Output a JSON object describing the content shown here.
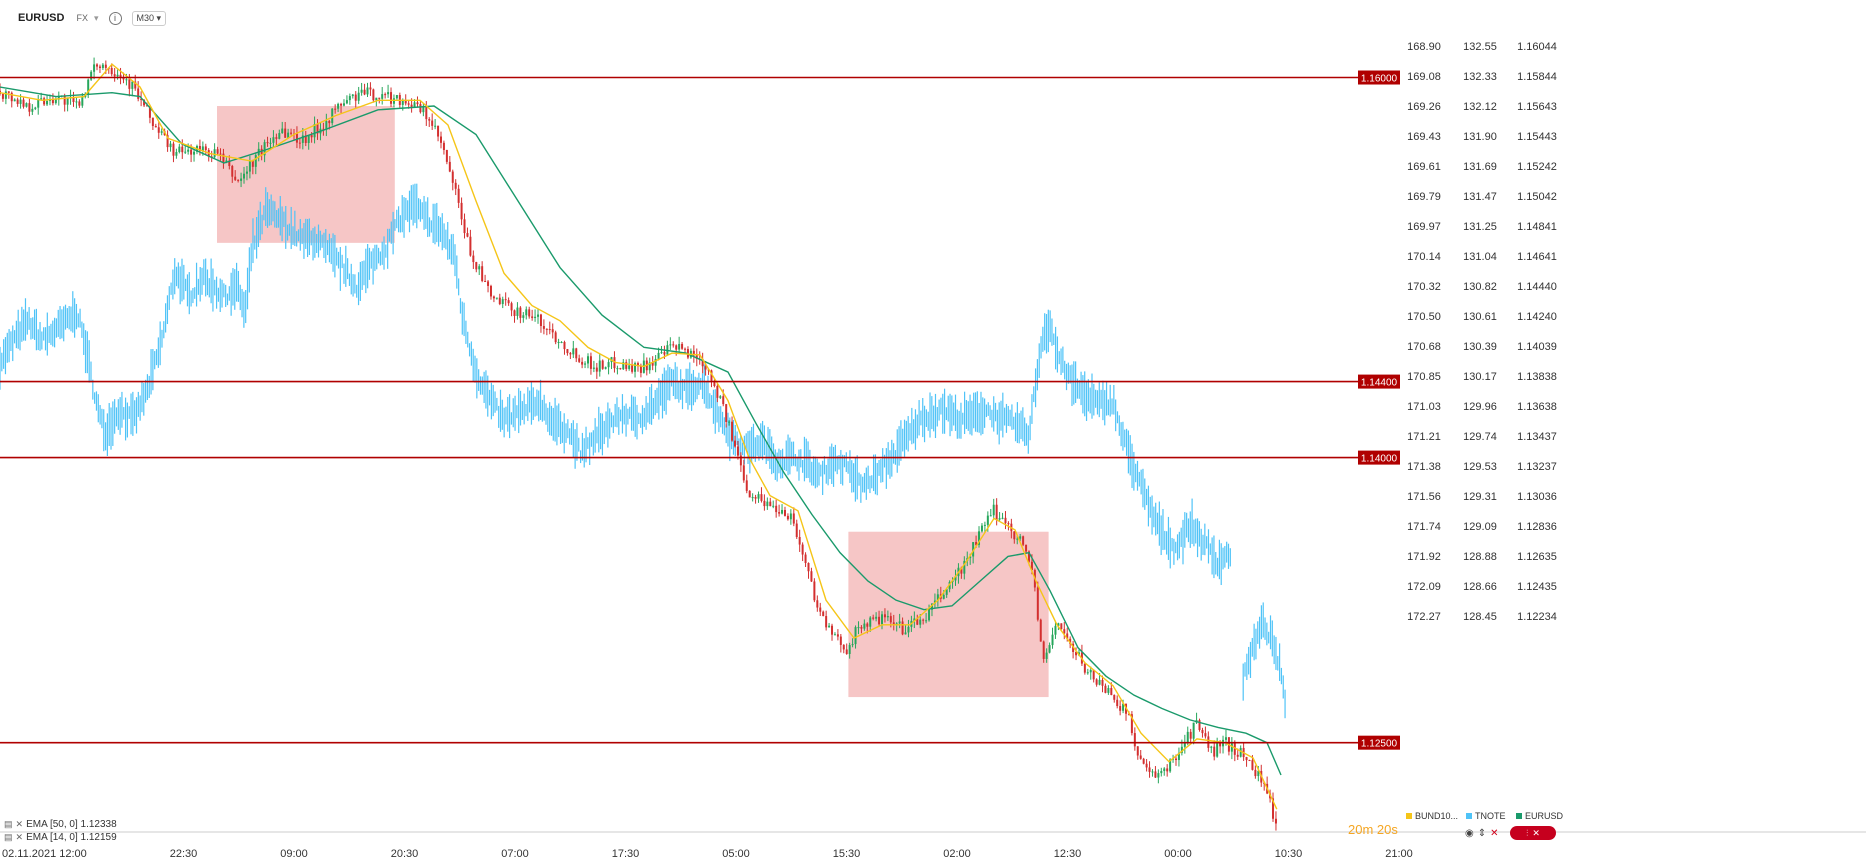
{
  "header": {
    "symbol": "EURUSD",
    "venue": "FX",
    "caret": "▾",
    "info": "i",
    "timeframe": "M30",
    "timeframe_caret": "▾"
  },
  "indicators": [
    {
      "label": "EMA [50, 0] 1.12338",
      "icon": "list-icon"
    },
    {
      "label": "EMA [14, 0] 1.12159",
      "icon": "list-icon"
    }
  ],
  "legend": [
    {
      "name": "BUND10...",
      "color": "#f5c518"
    },
    {
      "name": "TNOTE",
      "color": "#4fc3f7"
    },
    {
      "name": "EURUSD",
      "color": "#1a9a6b"
    }
  ],
  "timer": "20m 20s",
  "colors": {
    "bull": "#26a65b",
    "bear": "#d32f2f",
    "ema50": "#1a9a6b",
    "ema14": "#f5c518",
    "tnote": "#4fc3f7",
    "hline": "#b00000",
    "box": "#f4bcbc"
  },
  "chart_data": {
    "type": "candlestick",
    "symbol": "EURUSD",
    "timeframe": "M30",
    "start_label": "02.11.2021",
    "x_tick_labels": [
      "12:00",
      "22:30",
      "09:00",
      "20:30",
      "07:00",
      "17:30",
      "05:00",
      "15:30",
      "02:00",
      "12:30",
      "00:00",
      "10:30",
      "21:00"
    ],
    "axis_bund_labels": [
      "168.90",
      "169.08",
      "169.26",
      "169.43",
      "169.61",
      "169.79",
      "169.97",
      "170.14",
      "170.32",
      "170.50",
      "170.68",
      "170.85",
      "171.03",
      "171.21",
      "171.38",
      "171.56",
      "171.74",
      "171.92",
      "172.09",
      "172.27"
    ],
    "axis_tnote_labels": [
      "132.55",
      "132.33",
      "132.12",
      "131.90",
      "131.69",
      "131.47",
      "131.25",
      "131.04",
      "130.82",
      "130.61",
      "130.39",
      "130.17",
      "129.96",
      "129.74",
      "129.53",
      "129.31",
      "129.09",
      "128.88",
      "128.66",
      "128.45"
    ],
    "axis_eurusd_labels": [
      "1.16044",
      "1.15844",
      "1.15643",
      "1.15443",
      "1.15242",
      "1.15042",
      "1.14841",
      "1.14641",
      "1.14440",
      "1.14240",
      "1.14039",
      "1.13838",
      "1.13638",
      "1.13437",
      "1.13237",
      "1.13036",
      "1.12836",
      "1.12635",
      "1.12435",
      "1.12234"
    ],
    "eurusd_range": [
      1.1203,
      1.1625
    ],
    "horizontal_levels": [
      "1.16000",
      "1.14400",
      "1.14000",
      "1.12500"
    ],
    "boxes": [
      {
        "x_from": 0.155,
        "x_to": 0.282,
        "y_from": 1.1585,
        "y_to": 1.1513
      },
      {
        "x_from": 0.606,
        "x_to": 0.749,
        "y_from": 1.1361,
        "y_to": 1.1274
      }
    ],
    "eurusd_path": [
      [
        0.0,
        1.1593
      ],
      [
        0.02,
        1.1585
      ],
      [
        0.04,
        1.159
      ],
      [
        0.055,
        1.1585
      ],
      [
        0.07,
        1.1608
      ],
      [
        0.085,
        1.1603
      ],
      [
        0.095,
        1.1595
      ],
      [
        0.11,
        1.1575
      ],
      [
        0.125,
        1.156
      ],
      [
        0.14,
        1.1562
      ],
      [
        0.155,
        1.156
      ],
      [
        0.17,
        1.1545
      ],
      [
        0.185,
        1.156
      ],
      [
        0.2,
        1.1573
      ],
      [
        0.215,
        1.1567
      ],
      [
        0.23,
        1.1575
      ],
      [
        0.245,
        1.1587
      ],
      [
        0.26,
        1.1592
      ],
      [
        0.275,
        1.159
      ],
      [
        0.29,
        1.1588
      ],
      [
        0.305,
        1.158
      ],
      [
        0.315,
        1.1565
      ],
      [
        0.325,
        1.154
      ],
      [
        0.335,
        1.151
      ],
      [
        0.35,
        1.1485
      ],
      [
        0.365,
        1.1478
      ],
      [
        0.38,
        1.1475
      ],
      [
        0.395,
        1.1465
      ],
      [
        0.41,
        1.1455
      ],
      [
        0.425,
        1.1448
      ],
      [
        0.44,
        1.145
      ],
      [
        0.455,
        1.1447
      ],
      [
        0.47,
        1.1452
      ],
      [
        0.48,
        1.1458
      ],
      [
        0.49,
        1.1456
      ],
      [
        0.5,
        1.1452
      ],
      [
        0.505,
        1.1448
      ],
      [
        0.515,
        1.143
      ],
      [
        0.525,
        1.1405
      ],
      [
        0.535,
        1.1382
      ],
      [
        0.55,
        1.1375
      ],
      [
        0.565,
        1.137
      ],
      [
        0.575,
        1.1345
      ],
      [
        0.585,
        1.132
      ],
      [
        0.595,
        1.1305
      ],
      [
        0.605,
        1.13
      ],
      [
        0.615,
        1.1312
      ],
      [
        0.63,
        1.1315
      ],
      [
        0.645,
        1.131
      ],
      [
        0.66,
        1.1315
      ],
      [
        0.675,
        1.133
      ],
      [
        0.69,
        1.1345
      ],
      [
        0.7,
        1.136
      ],
      [
        0.71,
        1.1372
      ],
      [
        0.72,
        1.1365
      ],
      [
        0.73,
        1.1355
      ],
      [
        0.738,
        1.134
      ],
      [
        0.745,
        1.129
      ],
      [
        0.755,
        1.1315
      ],
      [
        0.765,
        1.13
      ],
      [
        0.78,
        1.1285
      ],
      [
        0.795,
        1.1275
      ],
      [
        0.805,
        1.1265
      ],
      [
        0.815,
        1.124
      ],
      [
        0.825,
        1.123
      ],
      [
        0.835,
        1.1238
      ],
      [
        0.845,
        1.125
      ],
      [
        0.855,
        1.126
      ],
      [
        0.865,
        1.1245
      ],
      [
        0.875,
        1.125
      ],
      [
        0.885,
        1.1245
      ],
      [
        0.895,
        1.1238
      ],
      [
        0.905,
        1.1225
      ],
      [
        0.912,
        1.1205
      ]
    ],
    "ema50_path": [
      [
        0.0,
        1.1595
      ],
      [
        0.04,
        1.159
      ],
      [
        0.08,
        1.1592
      ],
      [
        0.1,
        1.159
      ],
      [
        0.13,
        1.1565
      ],
      [
        0.16,
        1.1555
      ],
      [
        0.19,
        1.1562
      ],
      [
        0.23,
        1.1572
      ],
      [
        0.27,
        1.1583
      ],
      [
        0.31,
        1.1585
      ],
      [
        0.34,
        1.157
      ],
      [
        0.37,
        1.1535
      ],
      [
        0.4,
        1.15
      ],
      [
        0.43,
        1.1475
      ],
      [
        0.46,
        1.1458
      ],
      [
        0.49,
        1.1455
      ],
      [
        0.52,
        1.1445
      ],
      [
        0.54,
        1.1418
      ],
      [
        0.56,
        1.1392
      ],
      [
        0.58,
        1.137
      ],
      [
        0.6,
        1.135
      ],
      [
        0.62,
        1.1335
      ],
      [
        0.64,
        1.1325
      ],
      [
        0.66,
        1.132
      ],
      [
        0.68,
        1.1322
      ],
      [
        0.7,
        1.1335
      ],
      [
        0.72,
        1.1348
      ],
      [
        0.735,
        1.135
      ],
      [
        0.75,
        1.133
      ],
      [
        0.77,
        1.13
      ],
      [
        0.79,
        1.1285
      ],
      [
        0.81,
        1.1275
      ],
      [
        0.83,
        1.1268
      ],
      [
        0.85,
        1.1262
      ],
      [
        0.87,
        1.1258
      ],
      [
        0.89,
        1.1255
      ],
      [
        0.905,
        1.125
      ],
      [
        0.915,
        1.1233
      ]
    ],
    "ema14_path": [
      [
        0.0,
        1.1592
      ],
      [
        0.03,
        1.1588
      ],
      [
        0.06,
        1.159
      ],
      [
        0.08,
        1.1607
      ],
      [
        0.1,
        1.1595
      ],
      [
        0.12,
        1.1568
      ],
      [
        0.15,
        1.156
      ],
      [
        0.18,
        1.1556
      ],
      [
        0.21,
        1.157
      ],
      [
        0.24,
        1.158
      ],
      [
        0.27,
        1.1588
      ],
      [
        0.3,
        1.1588
      ],
      [
        0.32,
        1.1575
      ],
      [
        0.34,
        1.1535
      ],
      [
        0.36,
        1.1497
      ],
      [
        0.38,
        1.148
      ],
      [
        0.4,
        1.1472
      ],
      [
        0.42,
        1.1458
      ],
      [
        0.44,
        1.145
      ],
      [
        0.46,
        1.1448
      ],
      [
        0.48,
        1.1455
      ],
      [
        0.5,
        1.1454
      ],
      [
        0.52,
        1.143
      ],
      [
        0.535,
        1.14
      ],
      [
        0.55,
        1.138
      ],
      [
        0.57,
        1.1372
      ],
      [
        0.59,
        1.1325
      ],
      [
        0.61,
        1.1305
      ],
      [
        0.63,
        1.1312
      ],
      [
        0.65,
        1.1312
      ],
      [
        0.67,
        1.1325
      ],
      [
        0.69,
        1.1345
      ],
      [
        0.71,
        1.1368
      ],
      [
        0.725,
        1.1362
      ],
      [
        0.74,
        1.1335
      ],
      [
        0.755,
        1.1312
      ],
      [
        0.775,
        1.1292
      ],
      [
        0.795,
        1.128
      ],
      [
        0.815,
        1.1255
      ],
      [
        0.835,
        1.124
      ],
      [
        0.855,
        1.1252
      ],
      [
        0.875,
        1.125
      ],
      [
        0.895,
        1.1242
      ],
      [
        0.912,
        1.1215
      ]
    ],
    "tnote_path": [
      [
        0.0,
        1.145
      ],
      [
        0.01,
        1.1462
      ],
      [
        0.02,
        1.1472
      ],
      [
        0.03,
        1.1462
      ],
      [
        0.045,
        1.147
      ],
      [
        0.055,
        1.1477
      ],
      [
        0.06,
        1.1462
      ],
      [
        0.07,
        1.1425
      ],
      [
        0.075,
        1.1413
      ],
      [
        0.085,
        1.1425
      ],
      [
        0.095,
        1.142
      ],
      [
        0.105,
        1.1435
      ],
      [
        0.115,
        1.146
      ],
      [
        0.125,
        1.1498
      ],
      [
        0.135,
        1.1485
      ],
      [
        0.145,
        1.1495
      ],
      [
        0.16,
        1.1485
      ],
      [
        0.17,
        1.149
      ],
      [
        0.175,
        1.1475
      ],
      [
        0.18,
        1.151
      ],
      [
        0.19,
        1.153
      ],
      [
        0.2,
        1.1525
      ],
      [
        0.215,
        1.1515
      ],
      [
        0.225,
        1.1515
      ],
      [
        0.235,
        1.1508
      ],
      [
        0.245,
        1.15
      ],
      [
        0.255,
        1.149
      ],
      [
        0.265,
        1.1502
      ],
      [
        0.275,
        1.151
      ],
      [
        0.285,
        1.1525
      ],
      [
        0.295,
        1.1533
      ],
      [
        0.305,
        1.1525
      ],
      [
        0.315,
        1.152
      ],
      [
        0.325,
        1.1505
      ],
      [
        0.33,
        1.1475
      ],
      [
        0.34,
        1.1445
      ],
      [
        0.35,
        1.143
      ],
      [
        0.36,
        1.142
      ],
      [
        0.375,
        1.1425
      ],
      [
        0.385,
        1.143
      ],
      [
        0.395,
        1.1418
      ],
      [
        0.405,
        1.1415
      ],
      [
        0.415,
        1.1402
      ],
      [
        0.425,
        1.141
      ],
      [
        0.435,
        1.1418
      ],
      [
        0.445,
        1.1423
      ],
      [
        0.455,
        1.142
      ],
      [
        0.47,
        1.143
      ],
      [
        0.48,
        1.144
      ],
      [
        0.49,
        1.1435
      ],
      [
        0.5,
        1.144
      ],
      [
        0.505,
        1.1435
      ],
      [
        0.515,
        1.142
      ],
      [
        0.525,
        1.1408
      ],
      [
        0.535,
        1.1405
      ],
      [
        0.545,
        1.1408
      ],
      [
        0.555,
        1.1398
      ],
      [
        0.565,
        1.14
      ],
      [
        0.575,
        1.1398
      ],
      [
        0.585,
        1.139
      ],
      [
        0.595,
        1.1398
      ],
      [
        0.605,
        1.1395
      ],
      [
        0.615,
        1.1385
      ],
      [
        0.625,
        1.139
      ],
      [
        0.635,
        1.1398
      ],
      [
        0.645,
        1.1408
      ],
      [
        0.655,
        1.1418
      ],
      [
        0.665,
        1.1423
      ],
      [
        0.675,
        1.1425
      ],
      [
        0.685,
        1.142
      ],
      [
        0.695,
        1.1422
      ],
      [
        0.705,
        1.1425
      ],
      [
        0.715,
        1.142
      ],
      [
        0.725,
        1.1418
      ],
      [
        0.735,
        1.1412
      ],
      [
        0.74,
        1.144
      ],
      [
        0.745,
        1.1465
      ],
      [
        0.75,
        1.147
      ],
      [
        0.755,
        1.1455
      ],
      [
        0.765,
        1.144
      ],
      [
        0.775,
        1.1433
      ],
      [
        0.785,
        1.1428
      ],
      [
        0.795,
        1.143
      ],
      [
        0.8,
        1.1415
      ],
      [
        0.81,
        1.1395
      ],
      [
        0.82,
        1.1375
      ],
      [
        0.83,
        1.136
      ],
      [
        0.84,
        1.1352
      ],
      [
        0.85,
        1.1365
      ],
      [
        0.86,
        1.1355
      ],
      [
        0.87,
        1.1345
      ],
      [
        0.875,
        1.1348
      ],
      [
        0.88,
        1.135
      ]
    ],
    "bund_path": [
      [
        0.888,
        1.1283
      ],
      [
        0.895,
        1.13
      ],
      [
        0.902,
        1.1313
      ],
      [
        0.908,
        1.1305
      ],
      [
        0.914,
        1.129
      ],
      [
        0.918,
        1.127
      ]
    ]
  }
}
